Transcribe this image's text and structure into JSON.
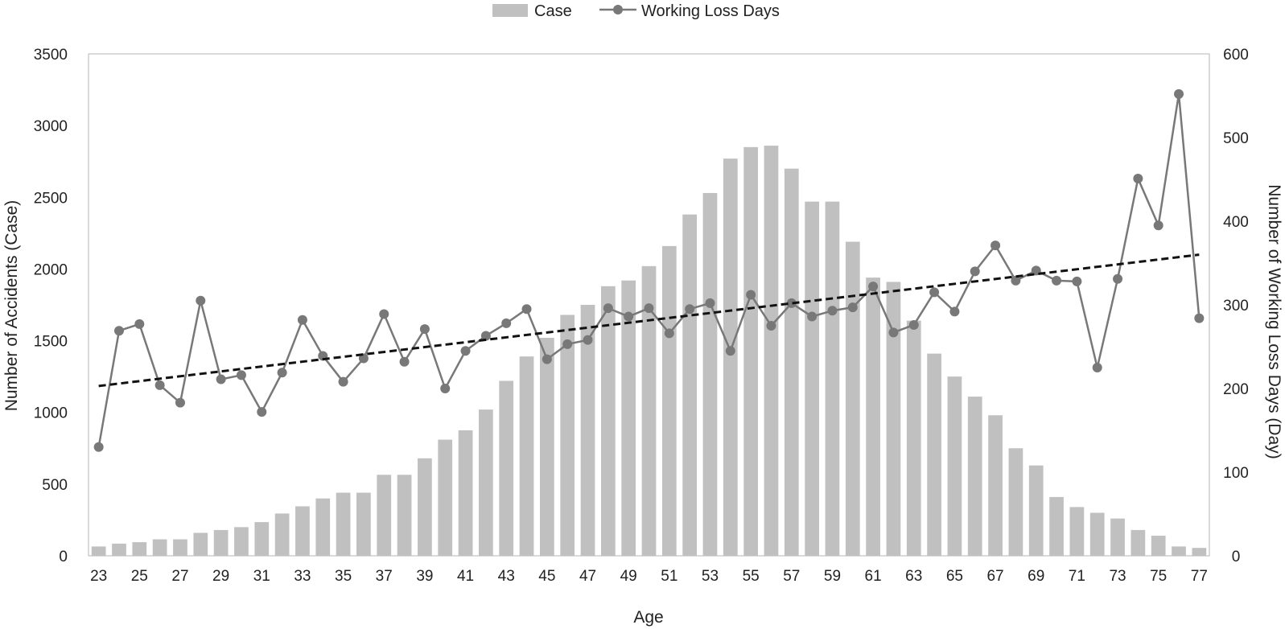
{
  "chart_data": {
    "type": "bar+line",
    "xlabel": "Age",
    "ylabel_left": "Number of Accidents (Case)",
    "ylabel_right": "Number of Working Loss Days (Day)",
    "ylim_left": [
      0,
      3500
    ],
    "ylim_right": [
      0,
      600
    ],
    "yticks_left": [
      "0",
      "500",
      "1000",
      "1500",
      "2000",
      "2500",
      "3000",
      "3500"
    ],
    "yticks_right": [
      "0",
      "100",
      "200",
      "300",
      "400",
      "500",
      "600"
    ],
    "ages": [
      23,
      24,
      25,
      26,
      27,
      28,
      29,
      30,
      31,
      32,
      33,
      34,
      35,
      36,
      37,
      38,
      39,
      40,
      41,
      42,
      43,
      44,
      45,
      46,
      47,
      48,
      49,
      50,
      51,
      52,
      53,
      54,
      55,
      56,
      57,
      58,
      59,
      60,
      61,
      62,
      63,
      64,
      65,
      66,
      67,
      68,
      69,
      70,
      71,
      72,
      73,
      74,
      75,
      76,
      77
    ],
    "xtick_labels": [
      "23",
      "25",
      "27",
      "29",
      "31",
      "33",
      "35",
      "37",
      "39",
      "41",
      "43",
      "45",
      "47",
      "49",
      "51",
      "53",
      "55",
      "57",
      "59",
      "61",
      "63",
      "65",
      "67",
      "69",
      "71",
      "73",
      "75",
      "77"
    ],
    "legend": {
      "case": "Case",
      "days": "Working Loss Days"
    },
    "series": [
      {
        "name": "Case",
        "kind": "bar",
        "axis": "left",
        "color": "#c0c0c0",
        "values": [
          65,
          85,
          95,
          115,
          115,
          160,
          180,
          200,
          235,
          295,
          345,
          400,
          440,
          440,
          565,
          565,
          680,
          810,
          875,
          1020,
          1220,
          1390,
          1520,
          1680,
          1750,
          1880,
          1920,
          2020,
          2160,
          2380,
          2530,
          2770,
          2850,
          2860,
          2700,
          2470,
          2470,
          2190,
          1940,
          1910,
          1640,
          1410,
          1250,
          1110,
          980,
          750,
          630,
          410,
          340,
          300,
          260,
          180,
          140,
          65,
          55
        ]
      },
      {
        "name": "Working Loss Days",
        "kind": "line",
        "axis": "right",
        "color": "#787878",
        "values": [
          130,
          269,
          277,
          204,
          183,
          305,
          211,
          216,
          172,
          219,
          282,
          239,
          208,
          236,
          289,
          232,
          271,
          200,
          245,
          263,
          278,
          295,
          235,
          253,
          258,
          296,
          286,
          296,
          266,
          295,
          302,
          245,
          312,
          275,
          302,
          286,
          293,
          297,
          322,
          267,
          276,
          315,
          292,
          340,
          371,
          329,
          341,
          329,
          328,
          225,
          331,
          451,
          395,
          552,
          284
        ]
      }
    ],
    "trendline": {
      "axis": "right",
      "from_age": 23,
      "to_age": 77,
      "start": 203,
      "end": 360,
      "color": "#111111",
      "style": "dashed"
    }
  }
}
